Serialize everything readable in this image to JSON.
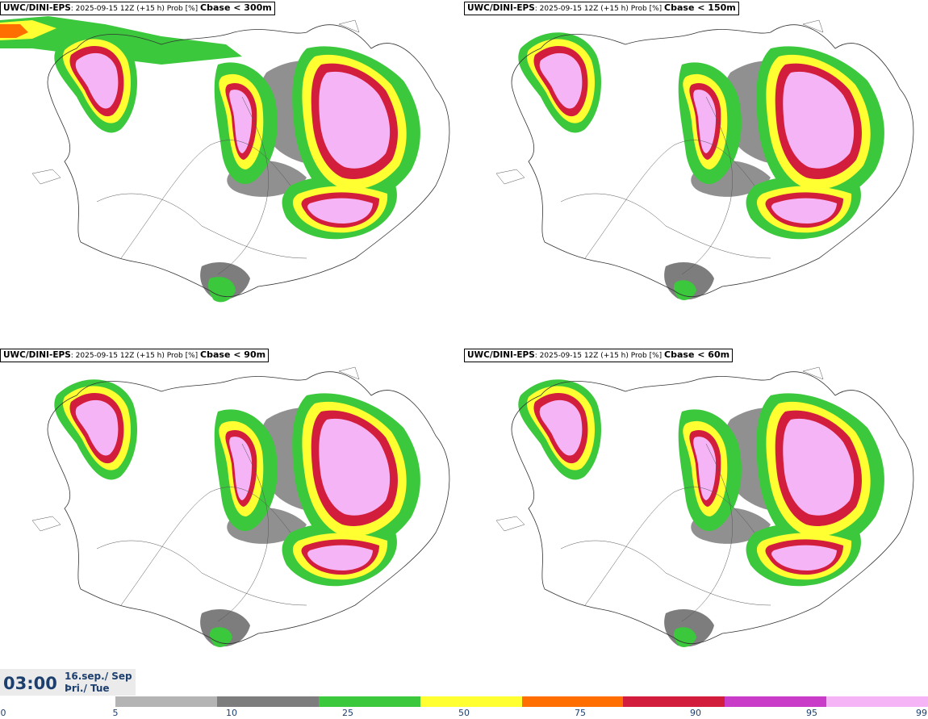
{
  "panels": [
    {
      "prefix": "UWC/DINI-EPS",
      "meta": ": 2025-09-15 12Z (+15 h) Prob [%] ",
      "label": "Cbase < 300m"
    },
    {
      "prefix": "UWC/DINI-EPS",
      "meta": ": 2025-09-15 12Z (+15 h) Prob [%] ",
      "label": "Cbase < 150m"
    },
    {
      "prefix": "UWC/DINI-EPS",
      "meta": ": 2025-09-15 12Z (+15 h) Prob [%] ",
      "label": "Cbase < 90m"
    },
    {
      "prefix": "UWC/DINI-EPS",
      "meta": ": 2025-09-15 12Z (+15 h) Prob [%] ",
      "label": "Cbase < 60m"
    }
  ],
  "time": {
    "clock": "03:00",
    "date_line1": "16.sep./ Sep",
    "date_line2": "Þri./ Tue"
  },
  "colorbar": {
    "ticks": [
      "0",
      "5",
      "10",
      "25",
      "50",
      "75",
      "90",
      "95",
      "99"
    ],
    "colors": [
      "#b4b4b4",
      "#7d7d7d",
      "#3cc83c",
      "#ffff32",
      "#ff6e00",
      "#d21e3c",
      "#c83cc8",
      "#f5b4f5"
    ]
  }
}
